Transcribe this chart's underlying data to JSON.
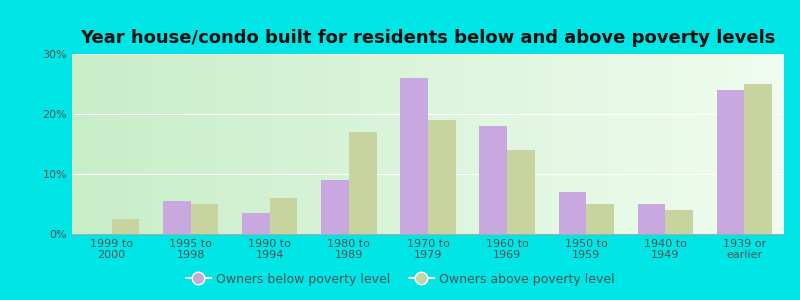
{
  "title": "Year house/condo built for residents below and above poverty levels",
  "categories": [
    "1999 to\n2000",
    "1995 to\n1998",
    "1990 to\n1994",
    "1980 to\n1989",
    "1970 to\n1979",
    "1960 to\n1969",
    "1950 to\n1959",
    "1940 to\n1949",
    "1939 or\nearlier"
  ],
  "below": [
    0.0,
    5.5,
    3.5,
    9.0,
    26.0,
    18.0,
    7.0,
    5.0,
    24.0
  ],
  "above": [
    2.5,
    5.0,
    6.0,
    17.0,
    19.0,
    14.0,
    5.0,
    4.0,
    25.0
  ],
  "below_color": "#c9a8e0",
  "above_color": "#c8d4a0",
  "ylim": [
    0,
    30
  ],
  "yticks": [
    0,
    10,
    20,
    30
  ],
  "legend_below": "Owners below poverty level",
  "legend_above": "Owners above poverty level",
  "bar_width": 0.35,
  "title_fontsize": 13,
  "tick_fontsize": 8,
  "legend_fontsize": 9,
  "outer_bg": "#00e5e5",
  "plot_bg_left": "#c8eec8",
  "plot_bg_right": "#f0f8f0",
  "grid_color": "#e0e8e0",
  "tick_color": "#555555",
  "spine_color": "#aaaaaa"
}
